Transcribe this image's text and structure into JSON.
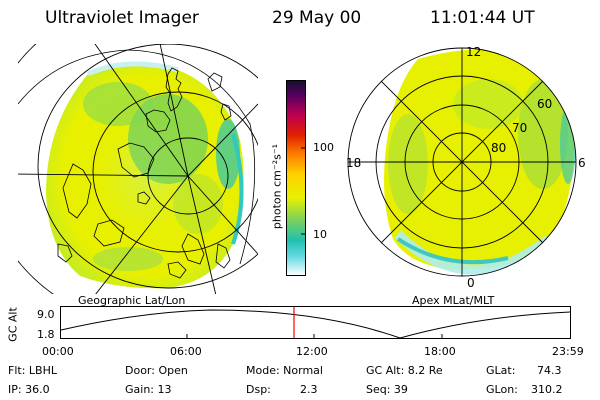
{
  "header": {
    "title": "Ultraviolet Imager",
    "date": "29 May 00",
    "time": "11:01:44 UT"
  },
  "colorbar": {
    "unit_label": "photon cm⁻²s⁻¹",
    "ticks": [
      "100",
      "10"
    ]
  },
  "left_panel": {
    "caption": "Geographic Lat/Lon"
  },
  "right_panel": {
    "caption": "Apex MLat/MLT",
    "mlt_labels": [
      "12",
      "18",
      "6",
      "0"
    ],
    "mlat_labels": [
      "60",
      "70",
      "80"
    ]
  },
  "altitude_plot": {
    "ylabel": "GC Alt",
    "y_ticks": [
      "9.0",
      "1.8"
    ],
    "x_ticks": [
      "00:00",
      "06:00",
      "12:00",
      "18:00",
      "23:59"
    ],
    "marker_time": "11:01:44"
  },
  "info": {
    "flt": "Flt: LBHL",
    "ip": "IP: 36.0",
    "door": "Door: Open",
    "gain": "Gain: 13",
    "mode": "Mode: Normal",
    "dsp_label": "Dsp:",
    "dsp_value": "2.3",
    "gc_alt": "GC Alt: 8.2 Re",
    "seq": "Seq: 39",
    "glat_label": "GLat:",
    "glat_value": "74.3",
    "glon_label": "GLon:",
    "glon_value": "310.2"
  },
  "colors": {
    "aurora_yellow": "#e8f000",
    "aurora_green": "#6cd05a",
    "aurora_cyan": "#28d0c8",
    "time_marker": "#ff0000"
  }
}
